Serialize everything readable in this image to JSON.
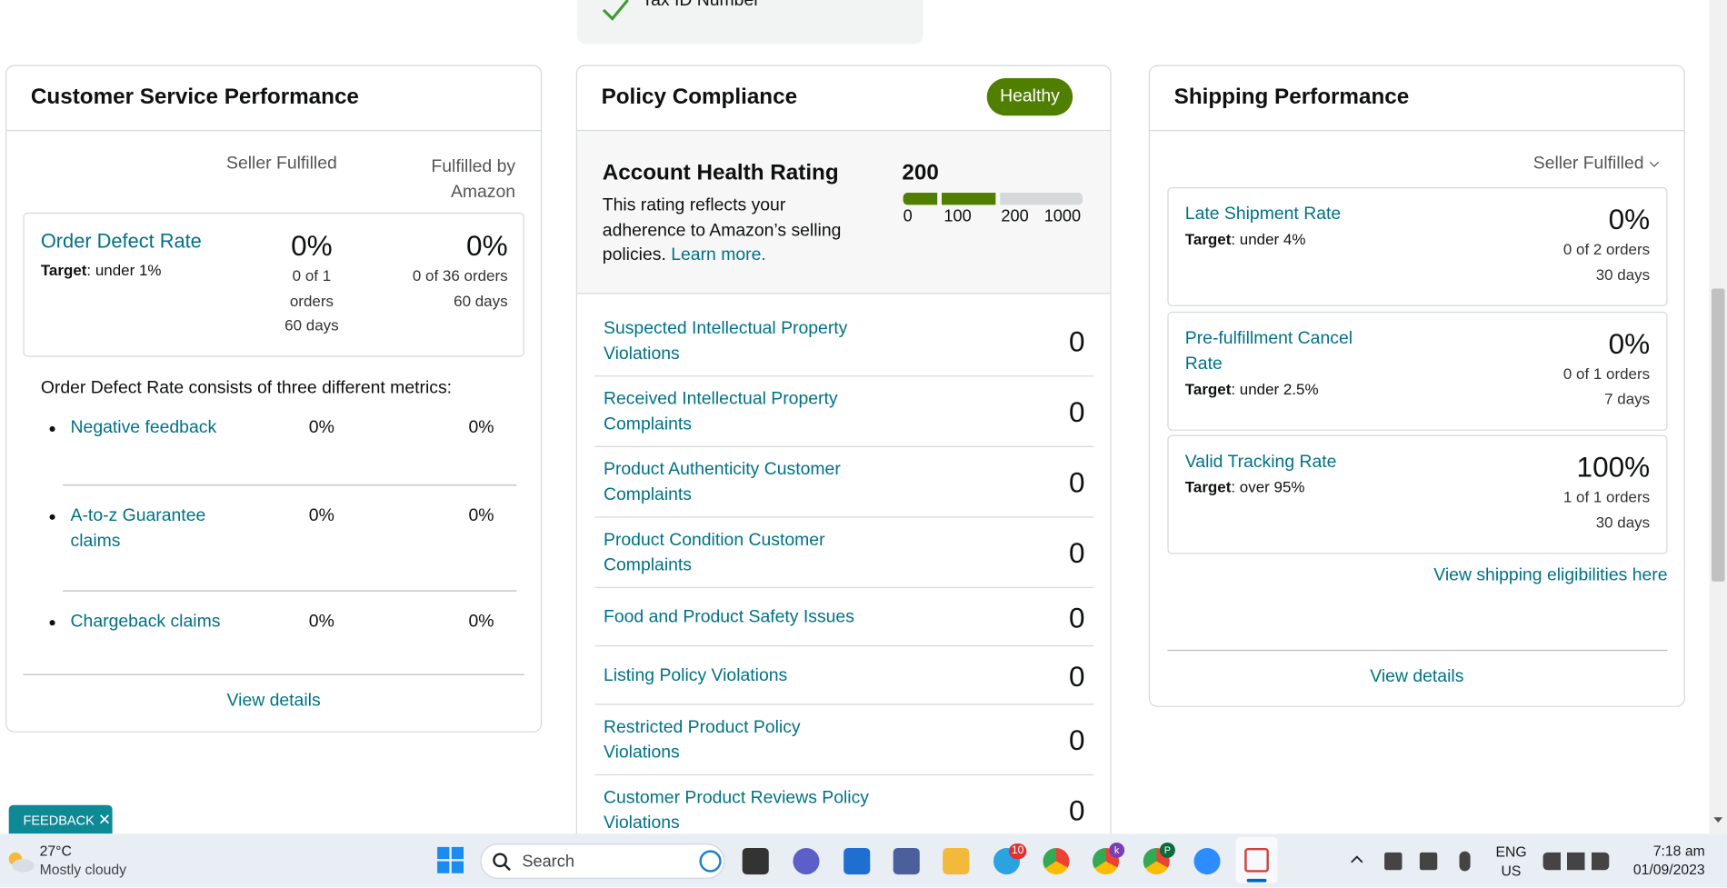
{
  "top_card": {
    "item": "Tax ID Number"
  },
  "customer_service": {
    "title": "Customer Service Performance",
    "columns": [
      "Seller Fulfilled",
      "Fulfilled by Amazon"
    ],
    "order_defect": {
      "name": "Order Defect Rate",
      "target_label": "Target",
      "target": ": under 1%",
      "seller": {
        "rate": "0%",
        "detail": "0 of 1 orders",
        "period": "60 days"
      },
      "fba": {
        "rate": "0%",
        "detail": "0 of 36 orders",
        "period": "60 days"
      }
    },
    "intro": "Order Defect Rate consists of three different metrics:",
    "metrics": [
      {
        "name": "Negative feedback",
        "seller": "0%",
        "fba": "0%"
      },
      {
        "name": "A-to-z Guarantee claims",
        "seller": "0%",
        "fba": "0%"
      },
      {
        "name": "Chargeback claims",
        "seller": "0%",
        "fba": "0%"
      }
    ],
    "link": "View details"
  },
  "policy": {
    "title": "Policy Compliance",
    "status": "Healthy",
    "rating_title": "Account Health Rating",
    "rating_value": "200",
    "rating_text": "This rating reflects your adherence to Amazon’s selling policies.",
    "learn_more": "Learn more.",
    "scale_labels": [
      "0",
      "100",
      "200",
      "1000"
    ],
    "items": [
      {
        "name": "Suspected Intellectual Property Violations",
        "count": "0"
      },
      {
        "name": "Received Intellectual Property Complaints",
        "count": "0"
      },
      {
        "name": "Product Authenticity Customer Complaints",
        "count": "0"
      },
      {
        "name": "Product Condition Customer Complaints",
        "count": "0"
      },
      {
        "name": "Food and Product Safety Issues",
        "count": "0"
      },
      {
        "name": "Listing Policy Violations",
        "count": "0"
      },
      {
        "name": "Restricted Product Policy Violations",
        "count": "0"
      },
      {
        "name": "Customer Product Reviews Policy Violations",
        "count": "0"
      }
    ]
  },
  "shipping": {
    "title": "Shipping Performance",
    "filter": "Seller Fulfilled",
    "metrics": [
      {
        "name": "Late Shipment Rate",
        "target_label": "Target",
        "target": ": under 4%",
        "rate": "0%",
        "detail": "0 of 2 orders",
        "period": "30 days"
      },
      {
        "name": "Pre-fulfillment Cancel Rate",
        "target_label": "Target",
        "target": ": under 2.5%",
        "rate": "0%",
        "detail": "0 of 1 orders",
        "period": "7 days"
      },
      {
        "name": "Valid Tracking Rate",
        "target_label": "Target",
        "target": ": over 95%",
        "rate": "100%",
        "detail": "1 of 1 orders",
        "period": "30 days"
      }
    ],
    "eligibility_link": "View shipping eligibilities here",
    "link": "View details"
  },
  "feedback": "FEEDBACK",
  "taskbar": {
    "temperature": "27°C",
    "weather": "Mostly cloudy",
    "search": "Search",
    "telegram_badge": "10",
    "chrome_avatar_1": "k",
    "chrome_avatar_2": "P",
    "language": "ENG",
    "region": "US",
    "time": "7:18 am",
    "date": "01/09/2023"
  }
}
